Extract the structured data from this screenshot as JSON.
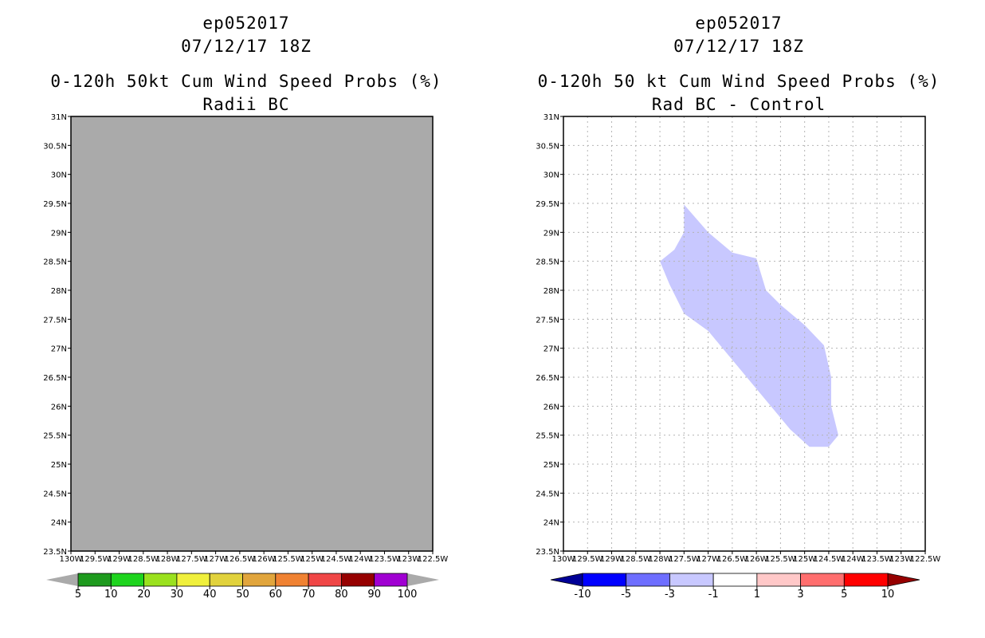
{
  "chart_data": [
    {
      "type": "heatmap",
      "storm_id": "ep052017",
      "datetime": "07/12/17 18Z",
      "title": "0-120h 50kt Cum Wind Speed Probs (%)",
      "subtitle": "Radii BC",
      "xlim": [
        -130,
        -122.5
      ],
      "ylim": [
        23.5,
        31
      ],
      "x_ticks": [
        "130W",
        "129.5W",
        "129W",
        "128.5W",
        "128W",
        "127.5W",
        "127W",
        "126.5W",
        "126W",
        "125.5W",
        "125W",
        "124.5W",
        "124W",
        "123.5W",
        "123W",
        "122.5W"
      ],
      "y_ticks": [
        "23.5N",
        "24N",
        "24.5N",
        "25N",
        "25.5N",
        "26N",
        "26.5N",
        "27N",
        "27.5N",
        "28N",
        "28.5N",
        "29N",
        "29.5N",
        "30N",
        "30.5N",
        "31N"
      ],
      "grid": false,
      "field_fill": "#aaaaaa",
      "field_note": "entire domain undefined / masked",
      "colorbar": {
        "labels": [
          "5",
          "10",
          "20",
          "30",
          "40",
          "50",
          "60",
          "70",
          "80",
          "90",
          "100"
        ],
        "colors": [
          "#1e9a1e",
          "#1ed41e",
          "#9ae11e",
          "#f0f03c",
          "#e1d23c",
          "#e1a53c",
          "#f08232",
          "#f04646",
          "#960000",
          "#a000d2"
        ],
        "under_color": "#aaaaaa",
        "over_color": "#aaaaaa"
      }
    },
    {
      "type": "heatmap",
      "storm_id": "ep052017",
      "datetime": "07/12/17 18Z",
      "title": "0-120h 50 kt Cum Wind Speed Probs (%)",
      "subtitle": "Rad BC - Control",
      "xlim": [
        -130,
        -122.5
      ],
      "ylim": [
        23.5,
        31
      ],
      "x_ticks": [
        "130W",
        "129.5W",
        "129W",
        "128.5W",
        "128W",
        "127.5W",
        "127W",
        "126.5W",
        "126W",
        "125.5W",
        "125W",
        "124.5W",
        "124W",
        "123.5W",
        "123W",
        "122.5W"
      ],
      "y_ticks": [
        "23.5N",
        "24N",
        "24.5N",
        "25N",
        "25.5N",
        "26N",
        "26.5N",
        "27N",
        "27.5N",
        "28N",
        "28.5N",
        "29N",
        "29.5N",
        "30N",
        "30.5N",
        "31N"
      ],
      "grid": true,
      "region": {
        "value_range": "-3 to -1",
        "color": "#c8c8ff",
        "outline_lon_lat": [
          [
            -127.5,
            29.48
          ],
          [
            -127.0,
            29.0
          ],
          [
            -126.5,
            28.65
          ],
          [
            -126.0,
            28.55
          ],
          [
            -125.8,
            28.0
          ],
          [
            -125.5,
            27.75
          ],
          [
            -125.0,
            27.4
          ],
          [
            -124.6,
            27.05
          ],
          [
            -124.45,
            26.5
          ],
          [
            -124.45,
            26.0
          ],
          [
            -124.3,
            25.5
          ],
          [
            -124.5,
            25.3
          ],
          [
            -124.9,
            25.3
          ],
          [
            -125.3,
            25.6
          ],
          [
            -125.7,
            26.0
          ],
          [
            -126.5,
            26.8
          ],
          [
            -127.0,
            27.3
          ],
          [
            -127.5,
            27.6
          ],
          [
            -127.8,
            28.1
          ],
          [
            -128.0,
            28.5
          ],
          [
            -127.7,
            28.7
          ],
          [
            -127.5,
            29.0
          ]
        ]
      },
      "colorbar": {
        "labels": [
          "-10",
          "-5",
          "-3",
          "-1",
          "1",
          "3",
          "5",
          "10"
        ],
        "colors": [
          "#0000ff",
          "#6e6eff",
          "#c8c8ff",
          "#ffffff",
          "#ffc8c8",
          "#ff6e6e",
          "#ff0000"
        ],
        "under_color": "#000096",
        "over_color": "#960000"
      }
    }
  ]
}
